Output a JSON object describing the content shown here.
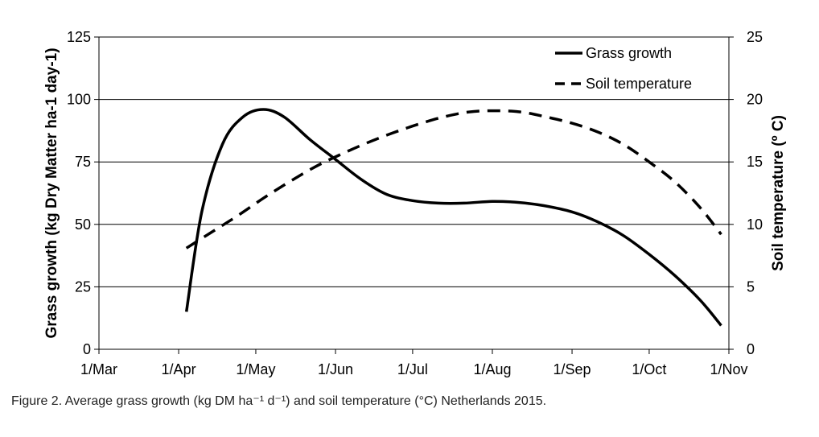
{
  "chart_data": {
    "type": "line",
    "x_ticks": [
      "1/Mar",
      "1/Apr",
      "1/May",
      "1/Jun",
      "1/Jul",
      "1/Aug",
      "1/Sep",
      "1/Oct",
      "1/Nov"
    ],
    "y_left": {
      "label": "Grass growth (kg Dry Matter ha-1 day-1)",
      "ticks": [
        "0",
        "25",
        "50",
        "75",
        "100",
        "125"
      ],
      "lim": [
        0,
        125
      ]
    },
    "y_right": {
      "label": "Soil temperature (º C)",
      "ticks": [
        "0",
        "5",
        "10",
        "15",
        "20",
        "25"
      ],
      "lim": [
        0,
        25
      ]
    },
    "grid_y": true,
    "legend_position": "top-right",
    "series": [
      {
        "name": "Grass growth",
        "axis": "left",
        "style": "solid",
        "color": "#000000",
        "points": [
          [
            "2015-04-04",
            15
          ],
          [
            "2015-04-10",
            55
          ],
          [
            "2015-04-18",
            82
          ],
          [
            "2015-04-26",
            93
          ],
          [
            "2015-05-04",
            96
          ],
          [
            "2015-05-12",
            93
          ],
          [
            "2015-05-22",
            84
          ],
          [
            "2015-06-01",
            76
          ],
          [
            "2015-06-11",
            68
          ],
          [
            "2015-06-21",
            62
          ],
          [
            "2015-07-01",
            59.5
          ],
          [
            "2015-07-11",
            58.5
          ],
          [
            "2015-07-21",
            58.5
          ],
          [
            "2015-08-01",
            59.2
          ],
          [
            "2015-08-11",
            58.8
          ],
          [
            "2015-08-21",
            57.5
          ],
          [
            "2015-09-01",
            55
          ],
          [
            "2015-09-11",
            51
          ],
          [
            "2015-09-21",
            45.5
          ],
          [
            "2015-10-01",
            38
          ],
          [
            "2015-10-11",
            29.5
          ],
          [
            "2015-10-21",
            19.5
          ],
          [
            "2015-10-29",
            9.5
          ]
        ]
      },
      {
        "name": "Soil temperature",
        "axis": "right",
        "style": "dashed",
        "color": "#000000",
        "points": [
          [
            "2015-04-04",
            8.1
          ],
          [
            "2015-04-14",
            9.4
          ],
          [
            "2015-04-24",
            10.7
          ],
          [
            "2015-05-04",
            12.1
          ],
          [
            "2015-05-14",
            13.4
          ],
          [
            "2015-05-24",
            14.6
          ],
          [
            "2015-06-03",
            15.6
          ],
          [
            "2015-06-13",
            16.5
          ],
          [
            "2015-06-23",
            17.3
          ],
          [
            "2015-07-03",
            18.0
          ],
          [
            "2015-07-13",
            18.6
          ],
          [
            "2015-07-23",
            19.0
          ],
          [
            "2015-08-02",
            19.1
          ],
          [
            "2015-08-12",
            19.0
          ],
          [
            "2015-08-22",
            18.6
          ],
          [
            "2015-09-01",
            18.1
          ],
          [
            "2015-09-11",
            17.4
          ],
          [
            "2015-09-21",
            16.4
          ],
          [
            "2015-10-01",
            15.0
          ],
          [
            "2015-10-11",
            13.4
          ],
          [
            "2015-10-21",
            11.3
          ],
          [
            "2015-10-29",
            9.2
          ]
        ]
      }
    ]
  },
  "caption": {
    "text": "Figure 2. Average grass growth (kg DM ha⁻¹ d⁻¹) and soil temperature (°C) Netherlands 2015."
  }
}
